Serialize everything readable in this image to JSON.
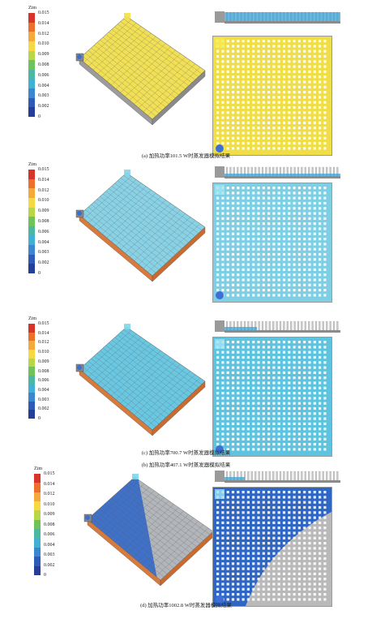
{
  "colorbar": {
    "unit": "Zim",
    "ticks": [
      "0.015",
      "0.014",
      "0.012",
      "0.010",
      "0.009",
      "0.008",
      "0.006",
      "0.004",
      "0.003",
      "0.002",
      "0"
    ],
    "colors": [
      "#d8342a",
      "#ec6f2c",
      "#f4a93a",
      "#f6d842",
      "#b9d648",
      "#6fc35a",
      "#4cb8a4",
      "#41b0d3",
      "#3a86cf",
      "#2f5bb8",
      "#253e9a"
    ]
  },
  "panels": [
    {
      "id": "a",
      "caption": "(a) 加热功率101.5 W时蒸发器模拟结果",
      "fill": "#f0de48",
      "wet": 0.05
    },
    {
      "id": "b",
      "caption": "(b) 加热功率407.1 W时蒸发器模拟结果",
      "fill": "#7fcfe4",
      "wet": 0.0
    },
    {
      "id": "c",
      "caption": "(c) 加热功率700.7 W时蒸发器模拟结果",
      "fill": "#5ec3df",
      "wet": 0.0
    },
    {
      "id": "d",
      "caption": "(d) 加热功率1002.8 W时蒸发器模拟结果",
      "fill": "#2f66c4",
      "wet": 0.55
    }
  ]
}
